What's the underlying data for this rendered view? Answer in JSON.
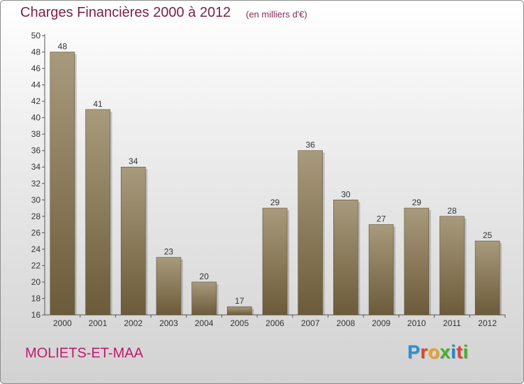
{
  "title": "Charges Financières 2000 à 2012",
  "subtitle": "(en milliers d'€)",
  "commune": "MOLIETS-ET-MAA",
  "brand": {
    "text": "Proxiti",
    "letter_colors": [
      "#2f8fd8",
      "#e8402c",
      "#f0a21a",
      "#43b02a",
      "#1e88d0",
      "#e8402c",
      "#43b02a"
    ]
  },
  "colors": {
    "bar_top": "#a89a7c",
    "bar_bottom": "#6b5b3a",
    "title": "#7a1f4a",
    "commune": "#c3196b"
  },
  "chart_data": {
    "type": "bar",
    "title": "Charges Financières 2000 à 2012",
    "subtitle": "(en milliers d'€)",
    "xlabel": "",
    "ylabel": "",
    "categories": [
      "2000",
      "2001",
      "2002",
      "2003",
      "2004",
      "2005",
      "2006",
      "2007",
      "2008",
      "2009",
      "2010",
      "2011",
      "2012"
    ],
    "values": [
      48,
      41,
      34,
      23,
      20,
      17,
      29,
      36,
      30,
      27,
      29,
      28,
      25
    ],
    "ylim": [
      16,
      50
    ],
    "yticks": [
      16,
      18,
      20,
      22,
      24,
      26,
      28,
      30,
      32,
      34,
      36,
      38,
      40,
      42,
      44,
      46,
      48,
      50
    ],
    "grid": false,
    "legend": "none"
  }
}
